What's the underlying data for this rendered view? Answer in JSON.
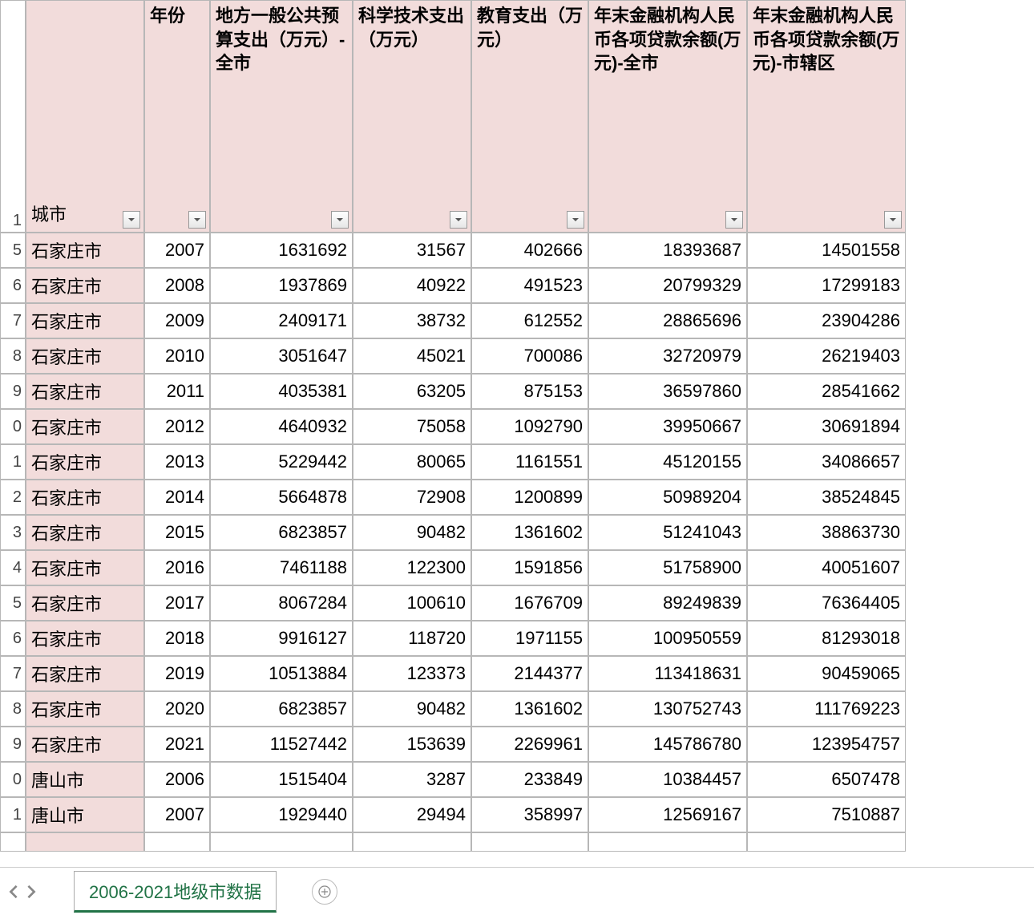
{
  "colors": {
    "header_bg": "#f2dcdb",
    "grid_border": "#b7b7b7",
    "tab_accent": "#217346"
  },
  "headers": {
    "rownum_label": "1",
    "city": "城市",
    "year": "年份",
    "budget": "地方一般公共预算支出（万元）-全市",
    "science": "科学技术支出（万元）",
    "education": "教育支出（万元）",
    "loan_city": "年末金融机构人民币各项贷款余额(万元)-全市",
    "loan_district": "年末金融机构人民币各项贷款余额(万元)-市辖区"
  },
  "row_numbers": [
    "5",
    "6",
    "7",
    "8",
    "9",
    "0",
    "1",
    "2",
    "3",
    "4",
    "5",
    "6",
    "7",
    "8",
    "9",
    "0",
    "1"
  ],
  "rows": [
    {
      "city": "石家庄市",
      "year": "2007",
      "budget": "1631692",
      "science": "31567",
      "education": "402666",
      "loan_city": "18393687",
      "loan_district": "14501558"
    },
    {
      "city": "石家庄市",
      "year": "2008",
      "budget": "1937869",
      "science": "40922",
      "education": "491523",
      "loan_city": "20799329",
      "loan_district": "17299183"
    },
    {
      "city": "石家庄市",
      "year": "2009",
      "budget": "2409171",
      "science": "38732",
      "education": "612552",
      "loan_city": "28865696",
      "loan_district": "23904286"
    },
    {
      "city": "石家庄市",
      "year": "2010",
      "budget": "3051647",
      "science": "45021",
      "education": "700086",
      "loan_city": "32720979",
      "loan_district": "26219403"
    },
    {
      "city": "石家庄市",
      "year": "2011",
      "budget": "4035381",
      "science": "63205",
      "education": "875153",
      "loan_city": "36597860",
      "loan_district": "28541662"
    },
    {
      "city": "石家庄市",
      "year": "2012",
      "budget": "4640932",
      "science": "75058",
      "education": "1092790",
      "loan_city": "39950667",
      "loan_district": "30691894"
    },
    {
      "city": "石家庄市",
      "year": "2013",
      "budget": "5229442",
      "science": "80065",
      "education": "1161551",
      "loan_city": "45120155",
      "loan_district": "34086657"
    },
    {
      "city": "石家庄市",
      "year": "2014",
      "budget": "5664878",
      "science": "72908",
      "education": "1200899",
      "loan_city": "50989204",
      "loan_district": "38524845"
    },
    {
      "city": "石家庄市",
      "year": "2015",
      "budget": "6823857",
      "science": "90482",
      "education": "1361602",
      "loan_city": "51241043",
      "loan_district": "38863730"
    },
    {
      "city": "石家庄市",
      "year": "2016",
      "budget": "7461188",
      "science": "122300",
      "education": "1591856",
      "loan_city": "51758900",
      "loan_district": "40051607"
    },
    {
      "city": "石家庄市",
      "year": "2017",
      "budget": "8067284",
      "science": "100610",
      "education": "1676709",
      "loan_city": "89249839",
      "loan_district": "76364405"
    },
    {
      "city": "石家庄市",
      "year": "2018",
      "budget": "9916127",
      "science": "118720",
      "education": "1971155",
      "loan_city": "100950559",
      "loan_district": "81293018"
    },
    {
      "city": "石家庄市",
      "year": "2019",
      "budget": "10513884",
      "science": "123373",
      "education": "2144377",
      "loan_city": "113418631",
      "loan_district": "90459065"
    },
    {
      "city": "石家庄市",
      "year": "2020",
      "budget": "6823857",
      "science": "90482",
      "education": "1361602",
      "loan_city": "130752743",
      "loan_district": "111769223"
    },
    {
      "city": "石家庄市",
      "year": "2021",
      "budget": "11527442",
      "science": "153639",
      "education": "2269961",
      "loan_city": "145786780",
      "loan_district": "123954757"
    },
    {
      "city": "唐山市",
      "year": "2006",
      "budget": "1515404",
      "science": "3287",
      "education": "233849",
      "loan_city": "10384457",
      "loan_district": "6507478"
    },
    {
      "city": "唐山市",
      "year": "2007",
      "budget": "1929440",
      "science": "29494",
      "education": "358997",
      "loan_city": "12569167",
      "loan_district": "7510887"
    }
  ],
  "sheet_tab": "2006-2021地级市数据"
}
